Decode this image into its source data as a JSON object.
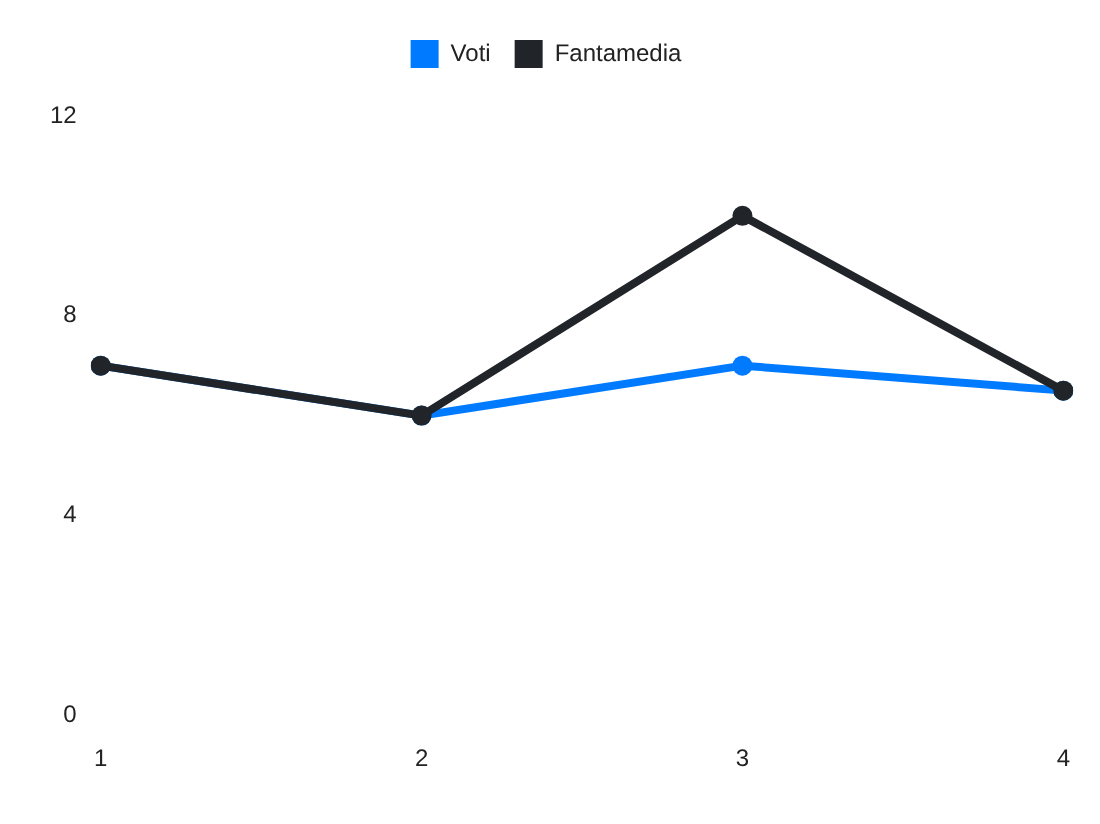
{
  "chart_data": {
    "type": "line",
    "categories": [
      "1",
      "2",
      "3",
      "4"
    ],
    "series": [
      {
        "name": "Voti",
        "color": "#007bff",
        "values": [
          7,
          6,
          7,
          6.5
        ]
      },
      {
        "name": "Fantamedia",
        "color": "#212529",
        "values": [
          7,
          6,
          10,
          6.5
        ]
      }
    ],
    "ylim": [
      0,
      12
    ],
    "yticks": [
      0,
      4,
      8,
      12
    ],
    "grid": false,
    "legend": "top",
    "marker": "circle",
    "line_style": "solid"
  }
}
